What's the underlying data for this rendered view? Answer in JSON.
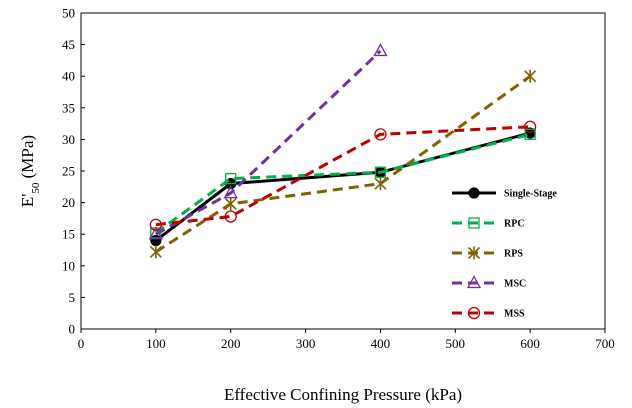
{
  "chart_data": {
    "type": "line",
    "title": "",
    "xlabel": "Effective Confining Pressure (kPa)",
    "ylabel_main": "E'",
    "ylabel_sub": "50",
    "ylabel_unit": " (MPa)",
    "xlim": [
      0,
      700
    ],
    "ylim": [
      0,
      50
    ],
    "xticks": [
      "0",
      "100",
      "200",
      "300",
      "400",
      "500",
      "600",
      "700"
    ],
    "yticks": [
      "0",
      "5",
      "10",
      "15",
      "20",
      "25",
      "30",
      "35",
      "40",
      "45",
      "50"
    ],
    "grid": false,
    "legend_position": "right",
    "series": [
      {
        "name": "Single-Stage",
        "x": [
          100,
          200,
          400,
          600
        ],
        "y": [
          14.0,
          23.0,
          24.8,
          31.0
        ],
        "color": "#000000",
        "dash": "solid",
        "marker": "filled-circle"
      },
      {
        "name": "RPC",
        "x": [
          100,
          200,
          400,
          600
        ],
        "y": [
          15.2,
          23.8,
          24.8,
          30.8
        ],
        "color": "#00b050",
        "dash": "dashed",
        "marker": "open-square"
      },
      {
        "name": "RPS",
        "x": [
          100,
          200,
          400,
          600
        ],
        "y": [
          12.2,
          19.8,
          23.0,
          40.0
        ],
        "color": "#806000",
        "dash": "dashed",
        "marker": "asterisk"
      },
      {
        "name": "MSC",
        "x": [
          100,
          200,
          400
        ],
        "y": [
          15.0,
          21.5,
          44.0
        ],
        "color": "#7030a0",
        "dash": "dashed",
        "marker": "open-triangle"
      },
      {
        "name": "MSS",
        "x": [
          100,
          200,
          400,
          600
        ],
        "y": [
          16.5,
          17.8,
          30.8,
          32.0
        ],
        "color": "#c00000",
        "dash": "dashed",
        "marker": "open-circle"
      }
    ]
  }
}
